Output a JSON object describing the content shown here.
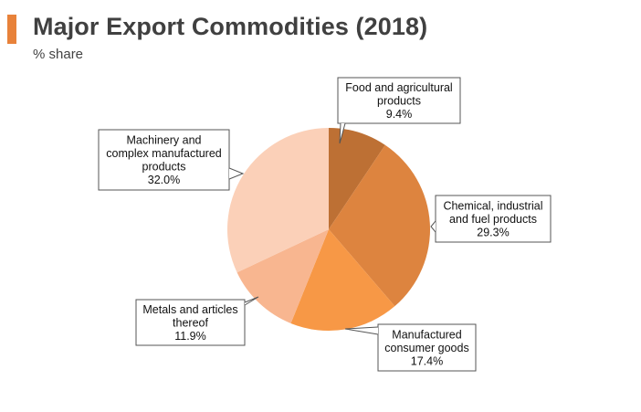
{
  "header": {
    "title": "Major Export Commodities (2018)",
    "subtitle": "% share",
    "accent_color": "#e8823a"
  },
  "chart_data": {
    "type": "pie",
    "title": "Major Export Commodities (2018)",
    "subtitle": "% share",
    "unit": "%",
    "slices": [
      {
        "label": [
          "Food and agricultural",
          "products"
        ],
        "value": 9.4,
        "display": "9.4%",
        "color": "#bd7034"
      },
      {
        "label": [
          "Chemical, industrial",
          "and fuel products"
        ],
        "value": 29.3,
        "display": "29.3%",
        "color": "#dd843f"
      },
      {
        "label": [
          "Manufactured",
          "consumer goods"
        ],
        "value": 17.4,
        "display": "17.4%",
        "color": "#f79846"
      },
      {
        "label": [
          "Metals and articles",
          "thereof"
        ],
        "value": 11.9,
        "display": "11.9%",
        "color": "#f8b690"
      },
      {
        "label": [
          "Machinery and",
          "complex manufactured",
          "products"
        ],
        "value": 32.0,
        "display": "32.0%",
        "color": "#fbd0b8"
      }
    ]
  }
}
